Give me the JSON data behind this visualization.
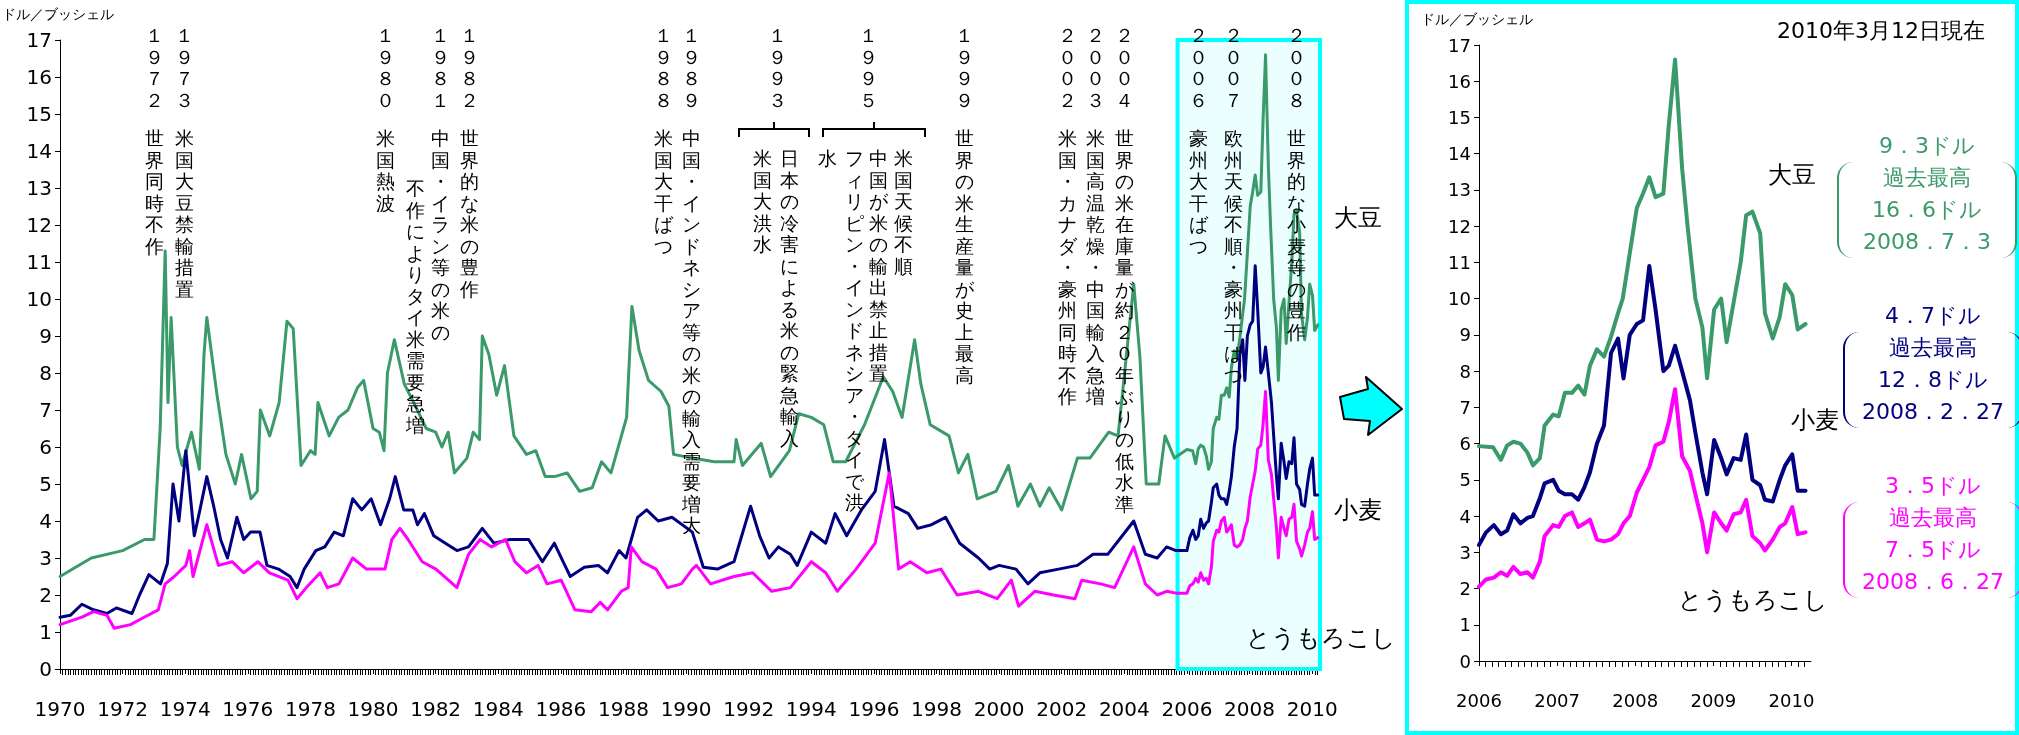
{
  "chart_data": [
    {
      "type": "line",
      "ylabel": "ドル／ブッシェル",
      "xlim": [
        1970,
        2010.25
      ],
      "xticks": [
        1970,
        1972,
        1974,
        1976,
        1978,
        1980,
        1982,
        1984,
        1986,
        1988,
        1990,
        1992,
        1994,
        1996,
        1998,
        2000,
        2002,
        2004,
        2006,
        2008,
        2010
      ],
      "ylim": [
        0,
        17
      ],
      "yticks": [
        0,
        1,
        2,
        3,
        4,
        5,
        6,
        7,
        8,
        9,
        10,
        11,
        12,
        13,
        14,
        15,
        16,
        17
      ],
      "marker": "none",
      "bands": [
        {
          "axis": "x",
          "from": 2005.7,
          "to": 2010.25,
          "color": "#00ffff"
        }
      ],
      "annotations": [
        "１９７２",
        "世界同時不作",
        "１９７３",
        "米国大豆禁輸措置",
        "１９８０",
        "米国熱波",
        "１９８１",
        "中国・イラン等の米の",
        "不作によりタイ米需要急増",
        "１９８２",
        "世界的な米の豊作",
        "１９８８",
        "米国大干ばつ",
        "１９８９",
        "中国・インドネシア等の米の輸入需要増大",
        "１９９３",
        "日本の冷害による米の緊急輸入",
        "米国大洪水",
        "１９９５",
        "米国天候不順",
        "中国が米の輸出禁止措置",
        "フィリピン・インドネシア・タイで洪",
        "水",
        "１９９９",
        "世界の米生産量が史上最高",
        "２００２",
        "米国・カナダ・豪州同時不作",
        "２００３",
        "米国高温乾燥・中国輸入急増",
        "２００４",
        "世界の米在庫量が約２０年ぶりの低水準",
        "２００６",
        "豪州大干ばつ",
        "２００７",
        "欧州天候不順・豪州干ばつ",
        "２００８",
        "世界的な小麦等の豊作"
      ],
      "series": [
        {
          "name": "大豆",
          "color": "#3a9a6a",
          "x": [
            1970.0,
            1971.0,
            1972.0,
            1972.7,
            1973.0,
            1973.2,
            1973.36,
            1973.45,
            1973.55,
            1973.75,
            1973.9,
            1974.2,
            1974.45,
            1974.6,
            1974.69,
            1975.0,
            1975.3,
            1975.6,
            1975.8,
            1976.1,
            1976.3,
            1976.4,
            1976.7,
            1977.0,
            1977.25,
            1977.45,
            1977.7,
            1978.0,
            1978.15,
            1978.24,
            1978.6,
            1978.9,
            1979.2,
            1979.5,
            1979.7,
            1980.0,
            1980.2,
            1980.35,
            1980.46,
            1980.68,
            1981.0,
            1981.3,
            1981.7,
            1982.0,
            1982.2,
            1982.4,
            1982.6,
            1983.0,
            1983.2,
            1983.4,
            1983.49,
            1983.7,
            1983.95,
            1984.2,
            1984.5,
            1984.9,
            1985.2,
            1985.5,
            1985.8,
            1986.2,
            1986.6,
            1987.0,
            1987.3,
            1987.6,
            1987.9,
            1988.1,
            1988.27,
            1988.5,
            1988.8,
            1989.2,
            1989.45,
            1989.6,
            1990.2,
            1990.9,
            1991.53,
            1991.6,
            1991.8,
            1992.4,
            1992.7,
            1993.3,
            1993.6,
            1994.0,
            1994.4,
            1994.7,
            1995.1,
            1995.7,
            1996.3,
            1996.6,
            1996.9,
            1997.3,
            1997.5,
            1997.8,
            1998.4,
            1998.7,
            1999.0,
            1999.3,
            1999.9,
            2000.3,
            2000.6,
            2001.0,
            2001.3,
            2001.6,
            2002.0,
            2002.5,
            2002.9,
            2003.5,
            2003.8,
            2004.3,
            2004.5,
            2004.7,
            2005.1,
            2005.3,
            2005.6,
            2006.0,
            2006.18,
            2006.28,
            2006.36,
            2006.44,
            2006.53,
            2006.62,
            2006.69,
            2006.78,
            2006.84,
            2006.95,
            2007.02,
            2007.1,
            2007.19,
            2007.27,
            2007.35,
            2007.42,
            2007.51,
            2007.6,
            2007.69,
            2007.78,
            2007.84,
            2008.02,
            2008.1,
            2008.18,
            2008.26,
            2008.36,
            2008.43,
            2008.51,
            2008.6,
            2008.67,
            2008.77,
            2008.86,
            2008.92,
            2009.01,
            2009.1,
            2009.17,
            2009.26,
            2009.35,
            2009.42,
            2009.5,
            2009.6,
            2009.66,
            2009.76,
            2009.85,
            2009.92,
            2010.01,
            2010.08,
            2010.18
          ],
          "values": [
            2.5,
            3.0,
            3.2,
            3.5,
            3.5,
            6.5,
            11.3,
            7.2,
            9.5,
            6.0,
            5.5,
            6.4,
            5.4,
            8.5,
            9.5,
            7.5,
            5.8,
            5.0,
            5.8,
            4.6,
            4.8,
            7.0,
            6.3,
            7.2,
            9.4,
            9.2,
            5.5,
            5.9,
            5.8,
            7.2,
            6.3,
            6.8,
            7.0,
            7.6,
            7.8,
            6.5,
            6.4,
            5.9,
            8.0,
            8.9,
            7.7,
            7.2,
            6.5,
            6.4,
            6.0,
            6.4,
            5.3,
            5.7,
            6.4,
            6.2,
            9.0,
            8.5,
            7.4,
            8.2,
            6.3,
            5.8,
            5.9,
            5.2,
            5.2,
            5.3,
            4.8,
            4.9,
            5.6,
            5.3,
            6.2,
            6.8,
            9.8,
            8.6,
            7.8,
            7.5,
            7.1,
            5.8,
            5.7,
            5.6,
            5.6,
            6.2,
            5.5,
            6.1,
            5.2,
            5.9,
            6.9,
            6.8,
            6.6,
            5.6,
            5.6,
            6.6,
            7.9,
            7.5,
            6.8,
            8.9,
            7.7,
            6.6,
            6.3,
            5.3,
            5.8,
            4.6,
            4.8,
            5.5,
            4.4,
            5.0,
            4.4,
            4.9,
            4.3,
            5.7,
            5.7,
            6.4,
            6.3,
            10.4,
            8.4,
            5.0,
            5.0,
            6.3,
            5.7,
            5.93,
            5.9,
            5.55,
            5.95,
            6.05,
            6.0,
            5.75,
            5.4,
            5.6,
            6.5,
            6.8,
            6.75,
            7.4,
            7.4,
            7.6,
            7.35,
            8.15,
            8.6,
            8.4,
            8.95,
            9.6,
            10.0,
            12.5,
            12.9,
            13.35,
            12.8,
            12.9,
            14.8,
            16.6,
            13.6,
            12.0,
            10.0,
            9.2,
            7.8,
            9.7,
            10.0,
            8.8,
            9.9,
            11.0,
            12.3,
            12.4,
            11.8,
            9.6,
            8.9,
            9.5,
            10.4,
            10.1,
            9.15,
            9.3
          ]
        },
        {
          "name": "小麦",
          "color": "#000080",
          "x": [
            1970.0,
            1970.33,
            1970.7,
            1971.07,
            1971.5,
            1971.8,
            1972.3,
            1972.54,
            1972.84,
            1973.21,
            1973.43,
            1973.61,
            1973.8,
            1974.02,
            1974.29,
            1974.47,
            1974.69,
            1974.91,
            1975.13,
            1975.35,
            1975.65,
            1975.87,
            1976.09,
            1976.39,
            1976.61,
            1976.98,
            1977.35,
            1977.57,
            1977.8,
            1978.17,
            1978.46,
            1978.76,
            1979.05,
            1979.35,
            1979.64,
            1979.94,
            1980.24,
            1980.53,
            1980.71,
            1980.98,
            1981.27,
            1981.42,
            1981.64,
            1981.94,
            1982.31,
            1982.68,
            1983.05,
            1983.49,
            1983.86,
            1984.38,
            1984.97,
            1985.41,
            1985.79,
            1986.07,
            1986.3,
            1986.75,
            1987.2,
            1987.49,
            1987.86,
            1988.08,
            1988.25,
            1988.45,
            1988.74,
            1989.11,
            1989.55,
            1990.2,
            1990.55,
            1991.0,
            1991.53,
            1992.06,
            1992.35,
            1992.65,
            1992.95,
            1993.33,
            1993.55,
            1994.0,
            1994.46,
            1994.76,
            1995.13,
            1995.6,
            1996.04,
            1996.34,
            1996.64,
            1997.1,
            1997.4,
            1997.84,
            1998.29,
            1998.74,
            1999.34,
            1999.7,
            2000.0,
            2000.54,
            2000.92,
            2001.3,
            2001.9,
            2002.5,
            2003.0,
            2003.47,
            2003.84,
            2004.3,
            2004.67,
            2005.05,
            2005.35,
            2005.65,
            2006.0,
            2006.09,
            2006.19,
            2006.28,
            2006.36,
            2006.44,
            2006.53,
            2006.62,
            2006.69,
            2006.78,
            2006.84,
            2006.95,
            2007.02,
            2007.1,
            2007.19,
            2007.27,
            2007.35,
            2007.42,
            2007.51,
            2007.6,
            2007.69,
            2007.78,
            2007.85,
            2007.93,
            2008.02,
            2008.1,
            2008.18,
            2008.26,
            2008.36,
            2008.43,
            2008.51,
            2008.6,
            2008.7,
            2008.77,
            2008.86,
            2008.92,
            2009.01,
            2009.1,
            2009.17,
            2009.26,
            2009.35,
            2009.42,
            2009.5,
            2009.6,
            2009.66,
            2009.76,
            2009.85,
            2009.92,
            2010.01,
            2010.08,
            2010.18
          ],
          "values": [
            1.4,
            1.45,
            1.75,
            1.6,
            1.5,
            1.65,
            1.5,
            2.0,
            2.55,
            2.3,
            2.85,
            5.0,
            4.0,
            5.9,
            3.6,
            4.3,
            5.2,
            4.4,
            3.5,
            3.0,
            4.1,
            3.5,
            3.7,
            3.7,
            2.8,
            2.7,
            2.5,
            2.2,
            2.7,
            3.2,
            3.3,
            3.7,
            3.6,
            4.6,
            4.3,
            4.6,
            3.9,
            4.6,
            5.2,
            4.3,
            4.3,
            3.9,
            4.2,
            3.6,
            3.4,
            3.2,
            3.3,
            3.8,
            3.4,
            3.5,
            3.5,
            2.9,
            3.4,
            2.9,
            2.5,
            2.75,
            2.8,
            2.6,
            3.2,
            3.0,
            3.5,
            4.1,
            4.3,
            4.0,
            4.1,
            3.7,
            2.75,
            2.7,
            2.9,
            4.4,
            3.6,
            3.0,
            3.3,
            3.1,
            2.8,
            3.7,
            3.4,
            4.2,
            3.6,
            4.3,
            4.8,
            6.2,
            4.4,
            4.2,
            3.8,
            3.9,
            4.1,
            3.4,
            3.0,
            2.7,
            2.8,
            2.7,
            2.3,
            2.6,
            2.7,
            2.8,
            3.1,
            3.1,
            3.5,
            4.0,
            3.1,
            3.0,
            3.3,
            3.2,
            3.2,
            3.55,
            3.75,
            3.5,
            3.6,
            4.05,
            3.8,
            3.95,
            4.0,
            4.5,
            4.9,
            5.0,
            4.7,
            4.6,
            4.6,
            4.45,
            4.8,
            5.2,
            6.0,
            6.5,
            8.5,
            8.9,
            7.8,
            9.0,
            9.3,
            9.4,
            10.9,
            9.7,
            8.0,
            8.15,
            8.7,
            8.0,
            7.2,
            6.3,
            5.2,
            4.6,
            6.1,
            5.6,
            5.15,
            5.6,
            5.55,
            6.25,
            5.0,
            4.85,
            4.45,
            4.4,
            5.0,
            5.4,
            5.7,
            4.7,
            4.7
          ]
        },
        {
          "name": "とうもろこし",
          "color": "#ff00ff",
          "x": [
            1970.0,
            1970.7,
            1971.07,
            1971.5,
            1971.73,
            1972.25,
            1972.69,
            1973.14,
            1973.36,
            1973.65,
            1974.02,
            1974.14,
            1974.25,
            1974.69,
            1975.06,
            1975.5,
            1975.87,
            1976.32,
            1976.69,
            1977.28,
            1977.57,
            1977.87,
            1978.31,
            1978.54,
            1978.91,
            1979.35,
            1979.79,
            1980.38,
            1980.6,
            1980.86,
            1981.12,
            1981.57,
            1982.01,
            1982.68,
            1983.05,
            1983.42,
            1983.79,
            1984.23,
            1984.53,
            1984.9,
            1985.27,
            1985.56,
            1986.01,
            1986.45,
            1986.97,
            1987.26,
            1987.49,
            1987.93,
            1988.15,
            1988.25,
            1988.59,
            1989.04,
            1989.41,
            1989.85,
            1990.2,
            1990.33,
            1990.78,
            1991.53,
            1992.13,
            1992.73,
            1993.33,
            1994.0,
            1994.46,
            1994.83,
            1995.43,
            1996.04,
            1996.49,
            1996.79,
            1997.16,
            1997.69,
            1998.14,
            1998.66,
            1999.34,
            1999.94,
            2000.39,
            2000.62,
            2001.14,
            2001.74,
            2002.42,
            2002.64,
            2003.24,
            2003.69,
            2004.3,
            2004.67,
            2005.05,
            2005.35,
            2005.65,
            2006.0,
            2006.09,
            2006.19,
            2006.28,
            2006.36,
            2006.44,
            2006.53,
            2006.62,
            2006.69,
            2006.78,
            2006.84,
            2006.95,
            2007.02,
            2007.1,
            2007.19,
            2007.27,
            2007.35,
            2007.42,
            2007.51,
            2007.6,
            2007.69,
            2007.78,
            2007.85,
            2007.93,
            2008.02,
            2008.1,
            2008.18,
            2008.26,
            2008.36,
            2008.43,
            2008.51,
            2008.6,
            2008.7,
            2008.77,
            2008.86,
            2008.92,
            2009.01,
            2009.1,
            2009.17,
            2009.26,
            2009.35,
            2009.42,
            2009.5,
            2009.6,
            2009.66,
            2009.76,
            2009.85,
            2009.92,
            2010.01,
            2010.08,
            2010.18
          ],
          "values": [
            1.2,
            1.4,
            1.55,
            1.45,
            1.1,
            1.2,
            1.4,
            1.6,
            2.3,
            2.5,
            2.8,
            3.2,
            2.5,
            3.9,
            2.8,
            2.9,
            2.6,
            2.9,
            2.6,
            2.4,
            1.9,
            2.2,
            2.6,
            2.2,
            2.3,
            3.0,
            2.7,
            2.7,
            3.5,
            3.8,
            3.5,
            2.9,
            2.7,
            2.2,
            3.1,
            3.5,
            3.3,
            3.5,
            2.9,
            2.6,
            2.8,
            2.3,
            2.4,
            1.6,
            1.55,
            1.8,
            1.6,
            2.1,
            2.2,
            3.3,
            2.9,
            2.7,
            2.2,
            2.3,
            2.7,
            2.8,
            2.3,
            2.5,
            2.6,
            2.1,
            2.2,
            2.9,
            2.6,
            2.1,
            2.7,
            3.4,
            5.3,
            2.7,
            2.9,
            2.6,
            2.7,
            2.0,
            2.1,
            1.9,
            2.4,
            1.7,
            2.1,
            2.0,
            1.9,
            2.4,
            2.3,
            2.2,
            3.3,
            2.3,
            2.0,
            2.1,
            2.05,
            2.05,
            2.25,
            2.3,
            2.45,
            2.35,
            2.6,
            2.4,
            2.45,
            2.3,
            2.75,
            3.45,
            3.75,
            3.7,
            4.0,
            4.1,
            3.7,
            3.8,
            3.9,
            3.35,
            3.3,
            3.35,
            3.5,
            3.8,
            4.0,
            4.65,
            5.0,
            5.35,
            5.95,
            6.05,
            6.6,
            7.5,
            5.65,
            5.25,
            4.6,
            3.8,
            3.0,
            4.1,
            3.8,
            3.6,
            4.05,
            4.1,
            4.45,
            3.45,
            3.25,
            3.05,
            3.35,
            3.7,
            3.8,
            4.25,
            3.5,
            3.55
          ]
        }
      ]
    },
    {
      "type": "line",
      "title": "2010年3月12日現在",
      "ylabel": "ドル／ブッシェル",
      "xlim": [
        2006,
        2010.25
      ],
      "xticks": [
        2006,
        2007,
        2008,
        2009,
        2010
      ],
      "ylim": [
        0,
        17
      ],
      "yticks": [
        0,
        1,
        2,
        3,
        4,
        5,
        6,
        7,
        8,
        9,
        10,
        11,
        12,
        13,
        14,
        15,
        16,
        17
      ],
      "marker": "none",
      "annotations": [
        "9．3ドル",
        "過去最高",
        "16．6ドル",
        "2008．7．3",
        "4．7ドル",
        "過去最高",
        "12．8ドル",
        "2008．2．27",
        "3．5ドル",
        "過去最高",
        "7．5ドル",
        "2008．6．27"
      ],
      "series": [
        {
          "name": "大豆",
          "color": "#3a9a6a",
          "x": [
            2006.0,
            2006.18,
            2006.28,
            2006.36,
            2006.44,
            2006.53,
            2006.62,
            2006.69,
            2006.78,
            2006.84,
            2006.95,
            2007.02,
            2007.1,
            2007.19,
            2007.27,
            2007.35,
            2007.42,
            2007.51,
            2007.6,
            2007.69,
            2007.78,
            2007.84,
            2008.02,
            2008.1,
            2008.18,
            2008.26,
            2008.36,
            2008.43,
            2008.51,
            2008.6,
            2008.67,
            2008.77,
            2008.86,
            2008.92,
            2009.01,
            2009.1,
            2009.17,
            2009.26,
            2009.35,
            2009.42,
            2009.5,
            2009.6,
            2009.66,
            2009.76,
            2009.85,
            2009.92,
            2010.01,
            2010.08,
            2010.18
          ],
          "values": [
            5.93,
            5.9,
            5.55,
            5.95,
            6.05,
            6.0,
            5.75,
            5.4,
            5.6,
            6.5,
            6.8,
            6.75,
            7.4,
            7.4,
            7.6,
            7.35,
            8.15,
            8.6,
            8.4,
            8.95,
            9.6,
            10.0,
            12.5,
            12.9,
            13.35,
            12.8,
            12.9,
            14.8,
            16.6,
            13.6,
            12.0,
            10.0,
            9.2,
            7.8,
            9.7,
            10.0,
            8.8,
            9.9,
            11.0,
            12.3,
            12.4,
            11.8,
            9.6,
            8.9,
            9.5,
            10.4,
            10.1,
            9.15,
            9.3
          ]
        },
        {
          "name": "小麦",
          "color": "#000080",
          "x": [
            2006.0,
            2006.09,
            2006.19,
            2006.28,
            2006.36,
            2006.44,
            2006.53,
            2006.62,
            2006.69,
            2006.78,
            2006.84,
            2006.95,
            2007.02,
            2007.1,
            2007.19,
            2007.27,
            2007.35,
            2007.42,
            2007.51,
            2007.6,
            2007.69,
            2007.78,
            2007.85,
            2007.93,
            2008.02,
            2008.1,
            2008.18,
            2008.26,
            2008.36,
            2008.43,
            2008.51,
            2008.6,
            2008.7,
            2008.77,
            2008.86,
            2008.92,
            2009.01,
            2009.1,
            2009.17,
            2009.26,
            2009.35,
            2009.42,
            2009.5,
            2009.6,
            2009.66,
            2009.76,
            2009.85,
            2009.92,
            2010.01,
            2010.08,
            2010.18
          ],
          "values": [
            3.2,
            3.55,
            3.75,
            3.5,
            3.6,
            4.05,
            3.8,
            3.95,
            4.0,
            4.5,
            4.9,
            5.0,
            4.7,
            4.6,
            4.6,
            4.45,
            4.8,
            5.2,
            6.0,
            6.5,
            8.5,
            8.9,
            7.8,
            9.0,
            9.3,
            9.4,
            10.9,
            9.7,
            8.0,
            8.15,
            8.7,
            8.0,
            7.2,
            6.3,
            5.2,
            4.6,
            6.1,
            5.6,
            5.15,
            5.6,
            5.55,
            6.25,
            5.0,
            4.85,
            4.45,
            4.4,
            5.0,
            5.4,
            5.7,
            4.7,
            4.7
          ]
        },
        {
          "name": "とうもろこし",
          "color": "#ff00ff",
          "x": [
            2006.0,
            2006.09,
            2006.19,
            2006.28,
            2006.36,
            2006.44,
            2006.53,
            2006.62,
            2006.69,
            2006.78,
            2006.84,
            2006.95,
            2007.02,
            2007.1,
            2007.19,
            2007.27,
            2007.35,
            2007.42,
            2007.51,
            2007.6,
            2007.69,
            2007.78,
            2007.85,
            2007.93,
            2008.02,
            2008.1,
            2008.18,
            2008.26,
            2008.36,
            2008.43,
            2008.51,
            2008.6,
            2008.7,
            2008.77,
            2008.86,
            2008.92,
            2009.01,
            2009.1,
            2009.17,
            2009.26,
            2009.35,
            2009.42,
            2009.5,
            2009.6,
            2009.66,
            2009.76,
            2009.85,
            2009.92,
            2010.01,
            2010.08,
            2010.18
          ],
          "values": [
            2.05,
            2.25,
            2.3,
            2.45,
            2.35,
            2.6,
            2.4,
            2.45,
            2.3,
            2.75,
            3.45,
            3.75,
            3.7,
            4.0,
            4.1,
            3.7,
            3.8,
            3.9,
            3.35,
            3.3,
            3.35,
            3.5,
            3.8,
            4.0,
            4.65,
            5.0,
            5.35,
            5.95,
            6.05,
            6.6,
            7.5,
            5.65,
            5.25,
            4.6,
            3.8,
            3.0,
            4.1,
            3.8,
            3.6,
            4.05,
            4.1,
            4.45,
            3.45,
            3.25,
            3.05,
            3.35,
            3.7,
            3.8,
            4.25,
            3.5,
            3.55
          ]
        }
      ]
    }
  ]
}
